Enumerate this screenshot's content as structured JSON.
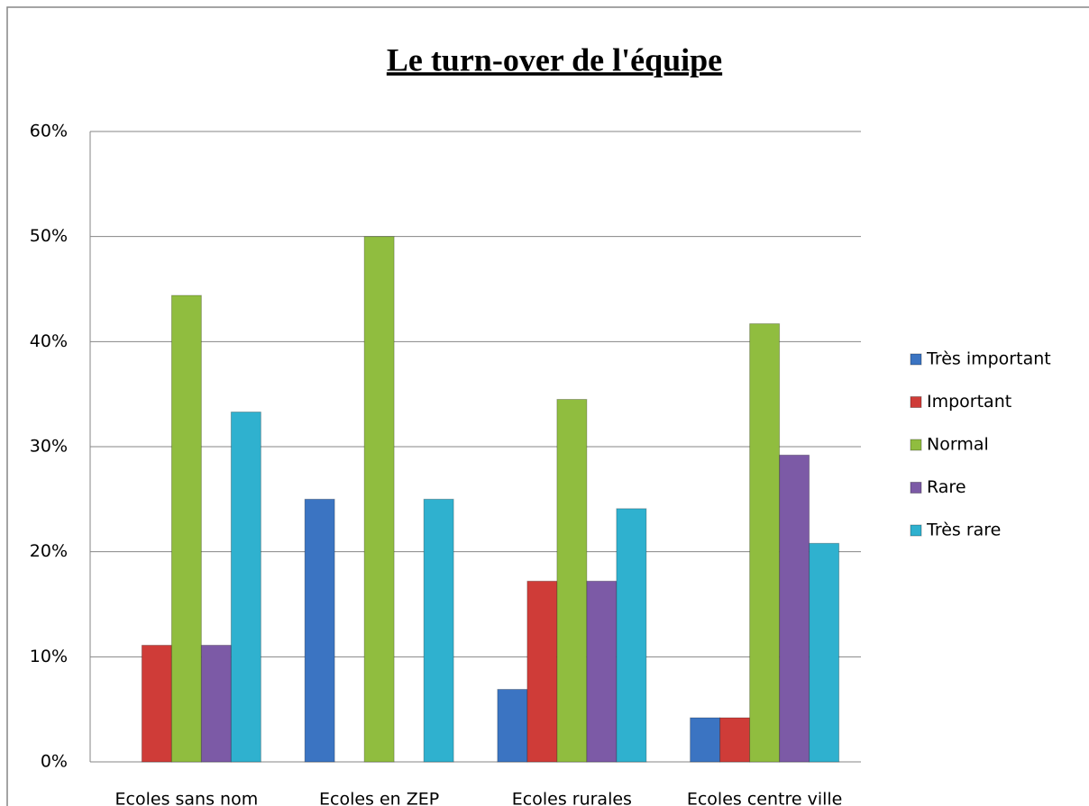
{
  "chart_data": {
    "type": "bar",
    "title": "Le turn-over de l'équipe",
    "categories": [
      "Ecoles sans nom",
      "Ecoles en ZEP",
      "Ecoles rurales",
      "Ecoles centre ville"
    ],
    "series": [
      {
        "name": "Très important",
        "color": "#3b74c2",
        "values": [
          0,
          25,
          6.9,
          4.2
        ]
      },
      {
        "name": "Important",
        "color": "#cf3c38",
        "values": [
          11.1,
          0,
          17.2,
          4.2
        ]
      },
      {
        "name": "Normal",
        "color": "#90bd3f",
        "values": [
          44.4,
          50,
          34.5,
          41.7
        ]
      },
      {
        "name": "Rare",
        "color": "#7c5aa6",
        "values": [
          11.1,
          0,
          17.2,
          29.2
        ]
      },
      {
        "name": "Très rare",
        "color": "#2fb1cf",
        "values": [
          33.3,
          25,
          24.1,
          20.8
        ]
      }
    ],
    "ylim": [
      0,
      60
    ],
    "yticks": [
      {
        "value": 0,
        "label": "0%"
      },
      {
        "value": 10,
        "label": "10%"
      },
      {
        "value": 20,
        "label": "20%"
      },
      {
        "value": 30,
        "label": "30%"
      },
      {
        "value": 40,
        "label": "40%"
      },
      {
        "value": 50,
        "label": "50%"
      },
      {
        "value": 60,
        "label": "60%"
      }
    ],
    "grid": true,
    "legend": "right"
  }
}
